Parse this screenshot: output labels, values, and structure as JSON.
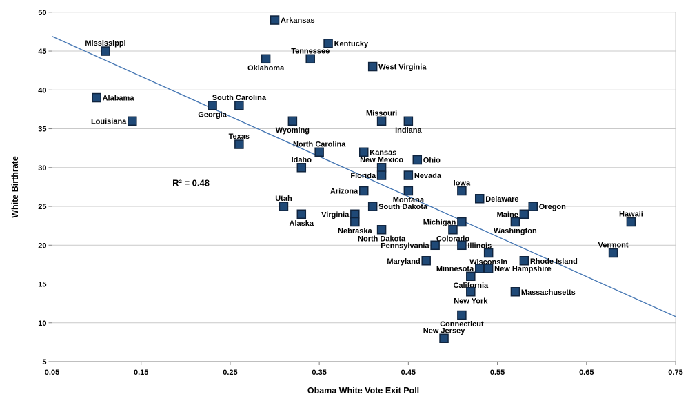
{
  "chart_data": {
    "type": "scatter",
    "title": "",
    "xlabel": "Obama White Vote Exit Poll",
    "ylabel": "White Birthrate",
    "xlim": [
      0.05,
      0.75
    ],
    "ylim": [
      5,
      50
    ],
    "x_ticks": [
      0.05,
      0.15,
      0.25,
      0.35,
      0.45,
      0.55,
      0.65,
      0.75
    ],
    "x_tick_labels": [
      "0.05",
      "0.15",
      "0.25",
      "0.35",
      "0.45",
      "0.55",
      "0.65",
      "0.75"
    ],
    "y_ticks": [
      5,
      10,
      15,
      20,
      25,
      30,
      35,
      40,
      45,
      50
    ],
    "y_tick_labels": [
      "5",
      "10",
      "15",
      "20",
      "25",
      "30",
      "35",
      "40",
      "45",
      "50"
    ],
    "grid": "horizontal",
    "legend": "none",
    "annotation": {
      "text": "R² = 0.48",
      "x": 0.206,
      "y": 28
    },
    "trendline": {
      "x1": 0.05,
      "y1": 46.9,
      "x2": 0.75,
      "y2": 10.8
    },
    "points": [
      {
        "state": "Alabama",
        "x": 0.1,
        "y": 39,
        "pos": "right"
      },
      {
        "state": "Mississippi",
        "x": 0.11,
        "y": 45,
        "pos": "above"
      },
      {
        "state": "Louisiana",
        "x": 0.14,
        "y": 36,
        "pos": "left"
      },
      {
        "state": "Georgia",
        "x": 0.23,
        "y": 38,
        "pos": "below"
      },
      {
        "state": "South Carolina",
        "x": 0.26,
        "y": 38,
        "pos": "above"
      },
      {
        "state": "Texas",
        "x": 0.26,
        "y": 33,
        "pos": "above"
      },
      {
        "state": "Oklahoma",
        "x": 0.29,
        "y": 44,
        "pos": "below"
      },
      {
        "state": "Arkansas",
        "x": 0.3,
        "y": 49,
        "pos": "right"
      },
      {
        "state": "Utah",
        "x": 0.31,
        "y": 25,
        "pos": "above"
      },
      {
        "state": "Wyoming",
        "x": 0.32,
        "y": 36,
        "pos": "below"
      },
      {
        "state": "Idaho",
        "x": 0.33,
        "y": 30,
        "pos": "above"
      },
      {
        "state": "Alaska",
        "x": 0.33,
        "y": 24,
        "pos": "below"
      },
      {
        "state": "Tennessee",
        "x": 0.34,
        "y": 44,
        "pos": "above"
      },
      {
        "state": "North Carolina",
        "x": 0.35,
        "y": 32,
        "pos": "above"
      },
      {
        "state": "Kentucky",
        "x": 0.36,
        "y": 46,
        "pos": "right"
      },
      {
        "state": "Virginia",
        "x": 0.39,
        "y": 24,
        "pos": "left"
      },
      {
        "state": "Nebraska",
        "x": 0.39,
        "y": 23,
        "pos": "below"
      },
      {
        "state": "Kansas",
        "x": 0.4,
        "y": 32,
        "pos": "right"
      },
      {
        "state": "Arizona",
        "x": 0.4,
        "y": 27,
        "pos": "left"
      },
      {
        "state": "West Virginia",
        "x": 0.41,
        "y": 43,
        "pos": "right"
      },
      {
        "state": "South Dakota",
        "x": 0.41,
        "y": 25,
        "pos": "right"
      },
      {
        "state": "Missouri",
        "x": 0.42,
        "y": 36,
        "pos": "above"
      },
      {
        "state": "New Mexico",
        "x": 0.42,
        "y": 30,
        "pos": "above"
      },
      {
        "state": "Florida",
        "x": 0.42,
        "y": 29,
        "pos": "left"
      },
      {
        "state": "North Dakota",
        "x": 0.42,
        "y": 22,
        "pos": "below"
      },
      {
        "state": "Indiana",
        "x": 0.45,
        "y": 36,
        "pos": "below"
      },
      {
        "state": "Nevada",
        "x": 0.45,
        "y": 29,
        "pos": "right"
      },
      {
        "state": "Montana",
        "x": 0.45,
        "y": 27,
        "pos": "below"
      },
      {
        "state": "Ohio",
        "x": 0.46,
        "y": 31,
        "pos": "right"
      },
      {
        "state": "Maryland",
        "x": 0.47,
        "y": 18,
        "pos": "left"
      },
      {
        "state": "Pennsylvania",
        "x": 0.48,
        "y": 20,
        "pos": "left"
      },
      {
        "state": "New Jersey",
        "x": 0.49,
        "y": 8,
        "pos": "above"
      },
      {
        "state": "Colorado",
        "x": 0.5,
        "y": 22,
        "pos": "below"
      },
      {
        "state": "Iowa",
        "x": 0.51,
        "y": 27,
        "pos": "above"
      },
      {
        "state": "Michigan",
        "x": 0.51,
        "y": 23,
        "pos": "left"
      },
      {
        "state": "Illinois",
        "x": 0.51,
        "y": 20,
        "pos": "right"
      },
      {
        "state": "Connecticut",
        "x": 0.51,
        "y": 11,
        "pos": "below"
      },
      {
        "state": "California",
        "x": 0.52,
        "y": 16,
        "pos": "below"
      },
      {
        "state": "New York",
        "x": 0.52,
        "y": 14,
        "pos": "below"
      },
      {
        "state": "Delaware",
        "x": 0.53,
        "y": 26,
        "pos": "right"
      },
      {
        "state": "Minnesota",
        "x": 0.53,
        "y": 17,
        "pos": "left"
      },
      {
        "state": "Wisconsin",
        "x": 0.54,
        "y": 19,
        "pos": "below"
      },
      {
        "state": "New Hampshire",
        "x": 0.54,
        "y": 17,
        "pos": "right"
      },
      {
        "state": "Massachusetts",
        "x": 0.57,
        "y": 14,
        "pos": "right"
      },
      {
        "state": "Washington",
        "x": 0.57,
        "y": 23,
        "pos": "below"
      },
      {
        "state": "Maine",
        "x": 0.58,
        "y": 24,
        "pos": "left"
      },
      {
        "state": "Rhode Island",
        "x": 0.58,
        "y": 18,
        "pos": "right"
      },
      {
        "state": "Oregon",
        "x": 0.59,
        "y": 25,
        "pos": "right"
      },
      {
        "state": "Vermont",
        "x": 0.68,
        "y": 19,
        "pos": "above"
      },
      {
        "state": "Hawaii",
        "x": 0.7,
        "y": 23,
        "pos": "above"
      }
    ]
  },
  "colors": {
    "marker_fill": "#1F4977",
    "marker_border": "#10243E",
    "trendline": "#4778B4",
    "gridline": "#C9C9C9",
    "axis": "#7F7F7F",
    "text": "#000000",
    "background": "#FFFFFF"
  }
}
